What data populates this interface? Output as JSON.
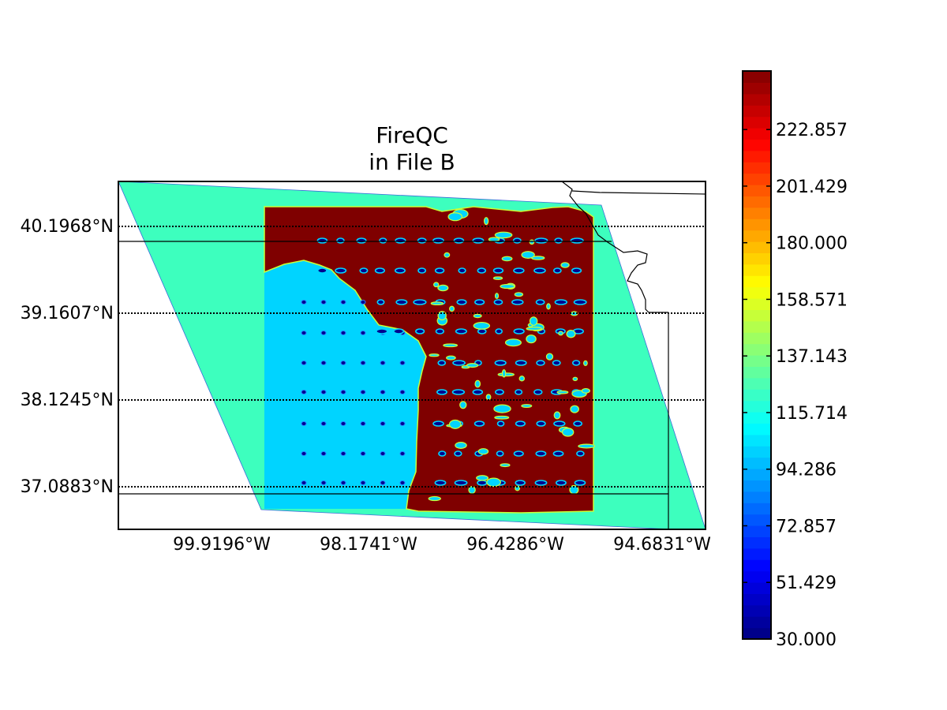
{
  "title": {
    "line1": "FireQC",
    "line2": "in File B"
  },
  "map": {
    "lat_labels": [
      "40.1968°N",
      "39.1607°N",
      "38.1245°N",
      "37.0883°N"
    ],
    "lon_labels": [
      "99.9196°W",
      "98.1741°W",
      "96.4286°W",
      "94.6831°W"
    ],
    "colors": {
      "swath_edge": "#3dffbe",
      "low_region": "#00d4ff",
      "high_region": "#7f0000",
      "speck_ring": "#c8ff37",
      "speck_core": "#00008f",
      "speck_ring_blue": "#2a7bff"
    }
  },
  "colorbar": {
    "vmin": 30.0,
    "vmax": 245.0,
    "ticks": [
      {
        "value": 30.0,
        "label": "30.000"
      },
      {
        "value": 51.429,
        "label": "51.429"
      },
      {
        "value": 72.857,
        "label": "72.857"
      },
      {
        "value": 94.286,
        "label": "94.286"
      },
      {
        "value": 115.714,
        "label": "115.714"
      },
      {
        "value": 137.143,
        "label": "137.143"
      },
      {
        "value": 158.571,
        "label": "158.571"
      },
      {
        "value": 180.0,
        "label": "180.000"
      },
      {
        "value": 201.429,
        "label": "201.429"
      },
      {
        "value": 222.857,
        "label": "222.857"
      }
    ],
    "colormap": "jet",
    "levels": 50
  }
}
